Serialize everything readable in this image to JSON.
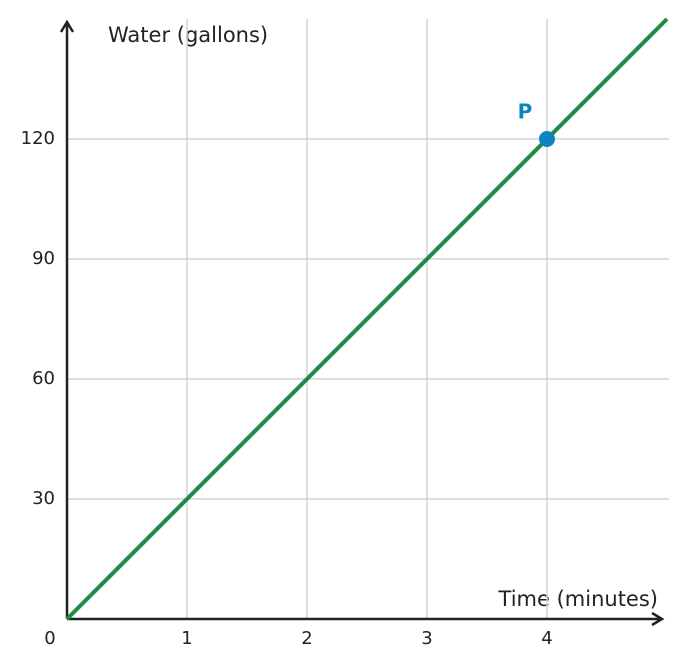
{
  "chart_data": {
    "type": "line",
    "x_label": "Time (minutes)",
    "y_label": "Water (gallons)",
    "xlim": [
      0,
      5
    ],
    "ylim": [
      0,
      150
    ],
    "xticks": [
      0,
      1,
      2,
      3,
      4
    ],
    "yticks": [
      30,
      60,
      90,
      120
    ],
    "grid": true,
    "series": [
      {
        "x": [
          0,
          5
        ],
        "values": [
          0,
          150
        ],
        "color": "#1e8c45"
      }
    ],
    "points": [
      {
        "label": "P",
        "x": 4,
        "y": 120,
        "color": "#0b84c0"
      }
    ]
  }
}
